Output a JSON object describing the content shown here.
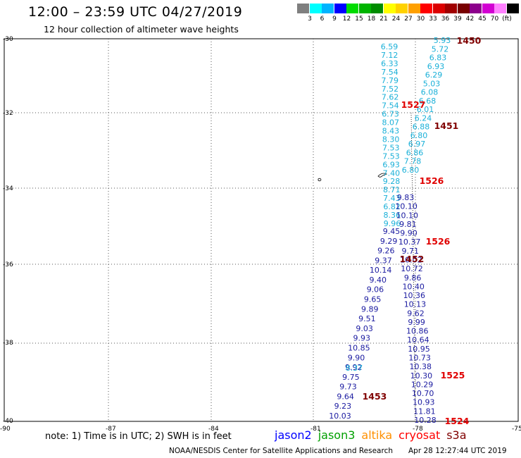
{
  "header": {
    "title": "12:00 – 23:59 UTC 04/27/2019",
    "subtitle": "12 hour collection of altimeter wave heights"
  },
  "colorbar": {
    "unit_label": "(ft)",
    "colors": [
      "#7f7f7f",
      "#00ffff",
      "#00b4ff",
      "#0000ff",
      "#00dc00",
      "#00b400",
      "#008c00",
      "#ffff00",
      "#ffd200",
      "#ffa000",
      "#ff0000",
      "#dc0000",
      "#a00000",
      "#780000",
      "#8c008c",
      "#d200d2",
      "#ff80ff",
      "#000000"
    ],
    "ticks": [
      "3",
      "6",
      "9",
      "12",
      "15",
      "18",
      "21",
      "24",
      "27",
      "30",
      "33",
      "36",
      "39",
      "42",
      "45",
      "70"
    ]
  },
  "axes": {
    "lat_labels": [
      "-30",
      "-32",
      "-34",
      "-36",
      "-38",
      "-40"
    ],
    "lon_labels": [
      "-90",
      "-87",
      "-84",
      "-81",
      "-78",
      "-75"
    ],
    "grid": "dotted"
  },
  "tracks": {
    "cyan_left": {
      "color": "#1ab0d8",
      "values": [
        "6.59",
        "7.12",
        "6.33",
        "7.54",
        "7.79",
        "7.52",
        "7.62",
        "7.54",
        "6.73",
        "8.07",
        "8.43",
        "8.30",
        "7.53",
        "7.53",
        "6.93",
        "7.40",
        "9.28",
        "8.71",
        "7.43",
        "6.82",
        "8.36",
        "9.96"
      ]
    },
    "cyan_right": {
      "color": "#1ab0d8",
      "values": [
        "5.93",
        "5.72",
        "6.83",
        "6.93",
        "6.29",
        "5.03",
        "6.08",
        "6.68",
        "6.01",
        "6.24",
        "6.88",
        "6.80",
        "6.97",
        "6.86",
        "7.78",
        "6.80"
      ]
    },
    "navy_left": {
      "color": "#1a1aa0",
      "values": [
        "9.45",
        "9.29",
        "9.26",
        "9.37",
        "10.14",
        "9.40",
        "9.06",
        "9.65",
        "9.89",
        "9.51",
        "9.03",
        "9.93",
        "10.85",
        "9.90",
        "9.92",
        "9.75",
        "9.73",
        "9.64",
        "9.23",
        "10.03"
      ]
    },
    "cyan_left_lower": {
      "color": "#1ab0d8",
      "values": [
        "8.37"
      ]
    },
    "navy_right": {
      "color": "#1a1aa0",
      "values": [
        "9.83",
        "10.10",
        "10.10",
        "9.81",
        "9.90",
        "10.37",
        "9.71",
        "10.02",
        "10.72",
        "9.86",
        "10.40",
        "10.36",
        "10.13",
        "9.62",
        "9.99",
        "10.86",
        "10.64",
        "10.95",
        "10.73",
        "10.38",
        "10.30",
        "10.29",
        "10.70",
        "10.93",
        "11.81",
        "10.28"
      ]
    },
    "times": [
      {
        "label": "1450",
        "color": "#800000"
      },
      {
        "label": "1527",
        "color": "#e00000"
      },
      {
        "label": "1451",
        "color": "#800000"
      },
      {
        "label": "1526",
        "color": "#e00000"
      },
      {
        "label": "1526",
        "color": "#e00000"
      },
      {
        "label": "1452",
        "color": "#800000"
      },
      {
        "label": "1453",
        "color": "#800000"
      },
      {
        "label": "1525",
        "color": "#e00000"
      },
      {
        "label": "1524",
        "color": "#e00000"
      }
    ]
  },
  "footer": {
    "note": "note: 1) Time is in UTC; 2) SWH is in feet",
    "satellites": [
      {
        "name": "jason2",
        "color": "#0000ff"
      },
      {
        "name": "jason3",
        "color": "#00a000"
      },
      {
        "name": "altika",
        "color": "#ff9000"
      },
      {
        "name": "cryosat",
        "color": "#ff0000"
      },
      {
        "name": "s3a",
        "color": "#800000"
      }
    ],
    "credit": "NOAA/NESDIS Center for Satellite Applications and Research",
    "timestamp": "Apr 28 12:27:44 UTC 2019"
  }
}
